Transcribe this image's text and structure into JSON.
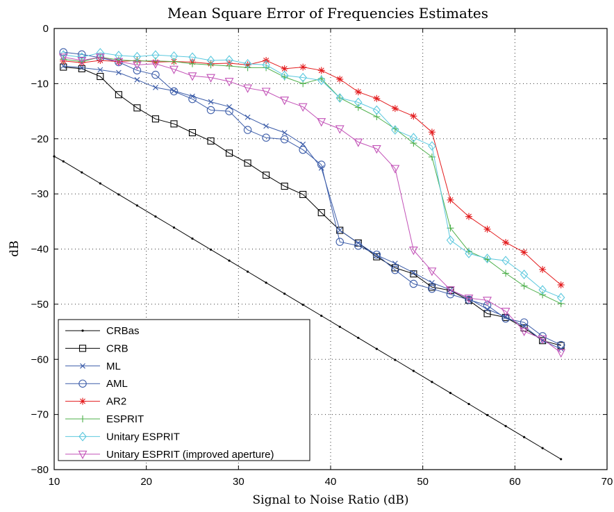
{
  "chart_data": {
    "type": "line",
    "title": "Mean Square Error of Frequencies Estimates",
    "xlabel": "Signal to Noise Ratio (dB)",
    "ylabel": "dB",
    "xlim": [
      10,
      70
    ],
    "ylim": [
      -80,
      0
    ],
    "xticks": [
      10,
      20,
      30,
      40,
      50,
      60,
      70
    ],
    "yticks": [
      0,
      -10,
      -20,
      -30,
      -40,
      -50,
      -60,
      -70,
      -80
    ],
    "grid": true,
    "legend_position": "bottom-left",
    "x": [
      11,
      13,
      15,
      17,
      19,
      21,
      23,
      25,
      27,
      29,
      31,
      33,
      35,
      37,
      39,
      41,
      43,
      45,
      47,
      49,
      51,
      53,
      55,
      57,
      59,
      61,
      63,
      65
    ],
    "series": [
      {
        "name": "CRBas",
        "color": "#000000",
        "marker": "dot",
        "x": [
          10,
          11,
          13,
          15,
          17,
          19,
          21,
          23,
          25,
          27,
          29,
          31,
          33,
          35,
          37,
          39,
          41,
          43,
          45,
          47,
          49,
          51,
          53,
          55,
          57,
          59,
          61,
          63,
          65
        ],
        "values": [
          -23.2,
          -24.1,
          -26.1,
          -28.1,
          -30.1,
          -32.1,
          -34.1,
          -36.1,
          -38.1,
          -40.1,
          -42.1,
          -44.1,
          -46.1,
          -48.1,
          -50.1,
          -52.1,
          -54.1,
          -56.1,
          -58.1,
          -60.1,
          -62.1,
          -64.1,
          -66.1,
          -68.1,
          -70.1,
          -72.1,
          -74.1,
          -76.1,
          -78.1
        ]
      },
      {
        "name": "CRB",
        "color": "#000000",
        "marker": "square",
        "values": [
          -7.0,
          -7.3,
          -8.7,
          -12.0,
          -14.4,
          -16.4,
          -17.3,
          -18.9,
          -20.4,
          -22.6,
          -24.4,
          -26.6,
          -28.6,
          -30.1,
          -33.4,
          -36.6,
          -38.9,
          -41.4,
          -43.4,
          -44.5,
          -46.9,
          -47.5,
          -49.3,
          -51.7,
          -52.4,
          -54.3,
          -56.6,
          -57.5
        ]
      },
      {
        "name": "ML",
        "color": "#3a5ba8",
        "marker": "x",
        "values": [
          -6.8,
          -7.1,
          -7.5,
          -8.0,
          -9.3,
          -10.7,
          -11.3,
          -12.3,
          -13.3,
          -14.2,
          -16.1,
          -17.7,
          -18.9,
          -21.0,
          -25.3,
          -36.6,
          -38.9,
          -41.1,
          -42.6,
          -44.3,
          -46.1,
          -47.4,
          -49.0,
          -50.9,
          -52.3,
          -54.0,
          -56.6,
          -58.1
        ]
      },
      {
        "name": "AML",
        "color": "#3a5ba8",
        "marker": "circle",
        "values": [
          -4.3,
          -4.7,
          -5.3,
          -6.1,
          -7.6,
          -8.4,
          -11.4,
          -12.8,
          -14.8,
          -15.0,
          -18.4,
          -19.8,
          -20.1,
          -22.0,
          -24.7,
          -38.7,
          -39.4,
          -41.0,
          -43.8,
          -46.3,
          -47.2,
          -48.2,
          -49.2,
          -50.2,
          -52.6,
          -53.3,
          -55.8,
          -57.4
        ]
      },
      {
        "name": "AR2",
        "color": "#e31a1c",
        "marker": "asterisk",
        "values": [
          -5.9,
          -6.2,
          -5.8,
          -6.0,
          -5.8,
          -6.1,
          -6.0,
          -6.1,
          -6.4,
          -6.3,
          -6.6,
          -5.8,
          -7.3,
          -7.0,
          -7.6,
          -9.2,
          -11.5,
          -12.7,
          -14.5,
          -15.9,
          -18.8,
          -31.1,
          -34.1,
          -36.4,
          -38.8,
          -40.6,
          -43.7,
          -46.5
        ]
      },
      {
        "name": "ESPRIT",
        "color": "#4daf4a",
        "marker": "plus",
        "values": [
          -5.6,
          -6.0,
          -5.2,
          -5.7,
          -5.9,
          -5.9,
          -6.0,
          -6.4,
          -6.6,
          -6.8,
          -7.1,
          -7.1,
          -8.8,
          -10.0,
          -9.1,
          -12.6,
          -14.3,
          -16.0,
          -18.2,
          -20.8,
          -23.3,
          -36.2,
          -40.4,
          -41.9,
          -44.4,
          -46.7,
          -48.3,
          -49.9
        ]
      },
      {
        "name": "Unitary ESPRIT",
        "color": "#5bc8de",
        "marker": "diamond",
        "values": [
          -4.8,
          -5.2,
          -4.4,
          -4.9,
          -5.1,
          -4.8,
          -5.0,
          -5.2,
          -5.8,
          -5.7,
          -6.4,
          -6.6,
          -8.5,
          -8.9,
          -9.4,
          -12.6,
          -13.4,
          -14.8,
          -18.4,
          -19.8,
          -21.3,
          -38.4,
          -40.8,
          -41.7,
          -42.1,
          -44.6,
          -47.4,
          -48.8
        ]
      },
      {
        "name": "Unitary ESPRIT (improved aperture)",
        "color": "#c251b7",
        "marker": "triangle-down",
        "values": [
          -5.2,
          -5.8,
          -5.2,
          -6.0,
          -6.6,
          -6.4,
          -7.4,
          -8.6,
          -8.9,
          -9.6,
          -10.8,
          -11.4,
          -13.0,
          -14.2,
          -16.9,
          -18.2,
          -20.6,
          -21.8,
          -25.4,
          -40.2,
          -44.0,
          -47.4,
          -48.9,
          -49.3,
          -51.3,
          -54.9,
          -56.3,
          -58.8
        ]
      }
    ]
  }
}
